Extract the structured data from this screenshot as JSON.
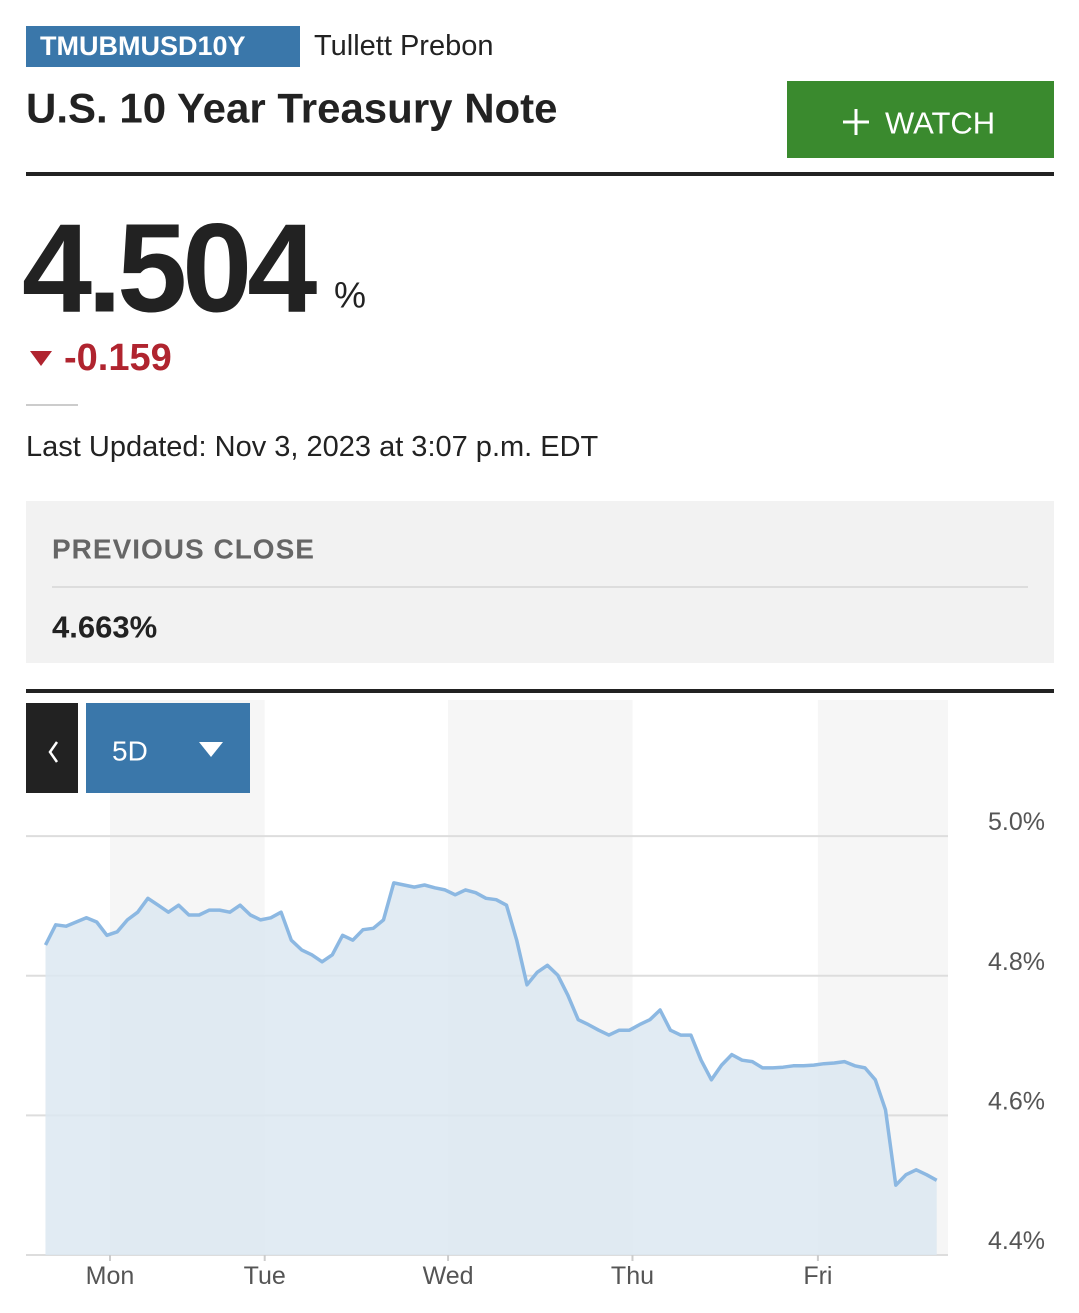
{
  "header": {
    "ticker": "TMUBMUSD10Y",
    "source": "Tullett Prebon",
    "title": "U.S. 10 Year Treasury Note",
    "watch_button": "WATCH"
  },
  "quote": {
    "price": "4.504",
    "unit": "%",
    "change": "-0.159",
    "last_updated": "Last Updated: Nov 3, 2023 at 3:07 p.m. EDT"
  },
  "previous_close": {
    "label": "PREVIOUS CLOSE",
    "value": "4.663%"
  },
  "chart_controls": {
    "range": "5D"
  },
  "chart_data": {
    "type": "line",
    "color": "#8cb8e2",
    "fill_color": "#dce7f1",
    "values": [
      4.844,
      4.873,
      4.871,
      4.877,
      4.883,
      4.877,
      4.858,
      4.863,
      4.88,
      4.891,
      4.911,
      4.901,
      4.891,
      4.901,
      4.887,
      4.887,
      4.894,
      4.894,
      4.891,
      4.901,
      4.887,
      4.88,
      4.883,
      4.891,
      4.851,
      4.837,
      4.83,
      4.82,
      4.83,
      4.858,
      4.851,
      4.866,
      4.868,
      4.88,
      4.933,
      4.93,
      4.927,
      4.93,
      4.926,
      4.923,
      4.916,
      4.923,
      4.919,
      4.911,
      4.909,
      4.901,
      4.851,
      4.787,
      4.805,
      4.815,
      4.801,
      4.772,
      4.737,
      4.73,
      4.722,
      4.715,
      4.722,
      4.722,
      4.73,
      4.737,
      4.751,
      4.722,
      4.715,
      4.715,
      4.679,
      4.651,
      4.672,
      4.687,
      4.679,
      4.677,
      4.668,
      4.668,
      4.669,
      4.671,
      4.671,
      4.672,
      4.674,
      4.675,
      4.677,
      4.671,
      4.668,
      4.651,
      4.608,
      4.5,
      4.515,
      4.522,
      4.515,
      4.507
    ],
    "xlim": [
      -1.9,
      88.1
    ],
    "xticks": [
      {
        "value": 6.3,
        "label": "Mon"
      },
      {
        "value": 21.4,
        "label": "Tue"
      },
      {
        "value": 39.3,
        "label": "Wed"
      },
      {
        "value": 57.3,
        "label": "Thu"
      },
      {
        "value": 75.4,
        "label": "Fri"
      }
    ],
    "ylim": [
      4.4,
      5.195
    ],
    "yticks": [
      {
        "value": 4.4,
        "label": "4.4%"
      },
      {
        "value": 4.6,
        "label": "4.6%"
      },
      {
        "value": 4.8,
        "label": "4.8%"
      },
      {
        "value": 5.0,
        "label": "5.0%"
      }
    ],
    "grid": true
  }
}
